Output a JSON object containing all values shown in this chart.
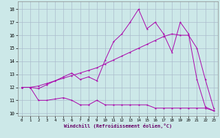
{
  "xlabel": "Windchill (Refroidissement éolien,°C)",
  "background_color": "#cce8e8",
  "grid_color": "#aabbcc",
  "line_color": "#aa00aa",
  "xlim_min": -0.5,
  "xlim_max": 23.5,
  "ylim_min": 9.8,
  "ylim_max": 18.6,
  "yticks": [
    10,
    11,
    12,
    13,
    14,
    15,
    16,
    17,
    18
  ],
  "xticks": [
    0,
    1,
    2,
    3,
    4,
    5,
    6,
    7,
    8,
    9,
    10,
    11,
    12,
    13,
    14,
    15,
    16,
    17,
    18,
    19,
    20,
    21,
    22,
    23
  ],
  "series1_x": [
    0,
    1,
    2,
    3,
    4,
    5,
    6,
    7,
    8,
    9,
    10,
    11,
    12,
    13,
    14,
    15,
    16,
    17,
    18,
    19,
    20,
    21,
    22,
    23
  ],
  "series1_y": [
    12.0,
    12.0,
    11.0,
    11.0,
    11.1,
    11.2,
    11.0,
    10.65,
    10.65,
    11.0,
    10.65,
    10.65,
    10.65,
    10.65,
    10.65,
    10.65,
    10.4,
    10.4,
    10.4,
    10.4,
    10.4,
    10.4,
    10.4,
    10.2
  ],
  "series2_x": [
    0,
    1,
    2,
    3,
    4,
    5,
    6,
    7,
    8,
    9,
    10,
    11,
    12,
    13,
    14,
    15,
    16,
    17,
    18,
    19,
    20,
    21,
    22,
    23
  ],
  "series2_y": [
    12.0,
    12.0,
    12.1,
    12.3,
    12.5,
    12.7,
    12.9,
    13.1,
    13.3,
    13.5,
    13.8,
    14.1,
    14.4,
    14.7,
    15.0,
    15.3,
    15.6,
    15.9,
    16.1,
    16.0,
    16.0,
    15.0,
    12.6,
    10.4
  ],
  "series3_x": [
    0,
    1,
    2,
    3,
    4,
    5,
    6,
    7,
    8,
    9,
    10,
    11,
    12,
    13,
    14,
    15,
    16,
    17,
    18,
    19,
    20,
    21,
    22,
    23
  ],
  "series3_y": [
    12.0,
    12.0,
    11.9,
    12.2,
    12.5,
    12.8,
    13.1,
    12.6,
    12.8,
    12.5,
    14.1,
    15.5,
    16.1,
    17.0,
    18.0,
    16.5,
    17.0,
    16.1,
    14.7,
    17.0,
    16.1,
    12.6,
    10.5,
    10.2
  ]
}
